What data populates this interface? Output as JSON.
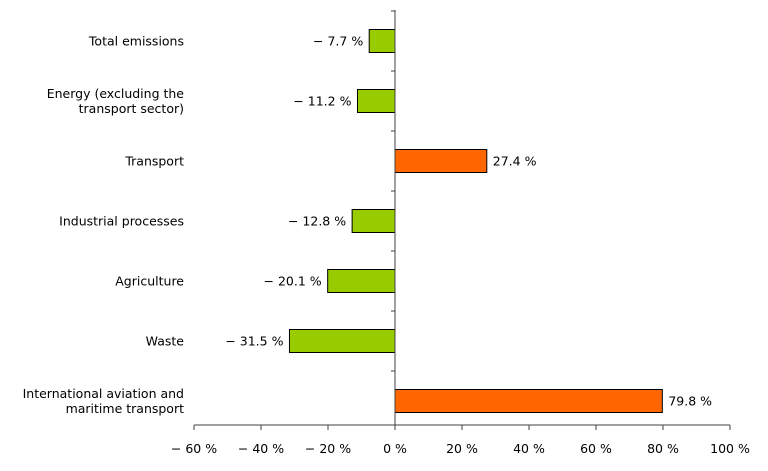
{
  "chart_data": {
    "type": "bar",
    "orientation": "horizontal",
    "categories": [
      "Total emissions",
      "Energy (excluding the transport sector)",
      "Transport",
      "Industrial processes",
      "Agriculture",
      "Waste",
      "International aviation and maritime transport"
    ],
    "category_lines": [
      [
        "Total emissions"
      ],
      [
        "Energy (excluding the",
        "transport sector)"
      ],
      [
        "Transport"
      ],
      [
        "Industrial processes"
      ],
      [
        "Agriculture"
      ],
      [
        "Waste"
      ],
      [
        "International aviation and",
        "maritime transport"
      ]
    ],
    "values": [
      -7.7,
      -11.2,
      27.4,
      -12.8,
      -20.1,
      -31.5,
      79.8
    ],
    "value_labels": [
      "− 7.7 %",
      "− 11.2 %",
      "27.4 %",
      "− 12.8 %",
      "− 20.1 %",
      "− 31.5 %",
      "79.8 %"
    ],
    "xlim": [
      -60,
      100
    ],
    "x_ticks": [
      -60,
      -40,
      -20,
      0,
      20,
      40,
      60,
      80,
      100
    ],
    "x_tick_labels": [
      "− 60 %",
      "− 40 %",
      "− 20 %",
      "0 %",
      "20 %",
      "40 %",
      "60 %",
      "80 %",
      "100 %"
    ],
    "colors": {
      "negative": "#99cc00",
      "positive": "#ff6600"
    },
    "grid": false,
    "legend": "none",
    "title": "",
    "xlabel": "",
    "ylabel": ""
  }
}
